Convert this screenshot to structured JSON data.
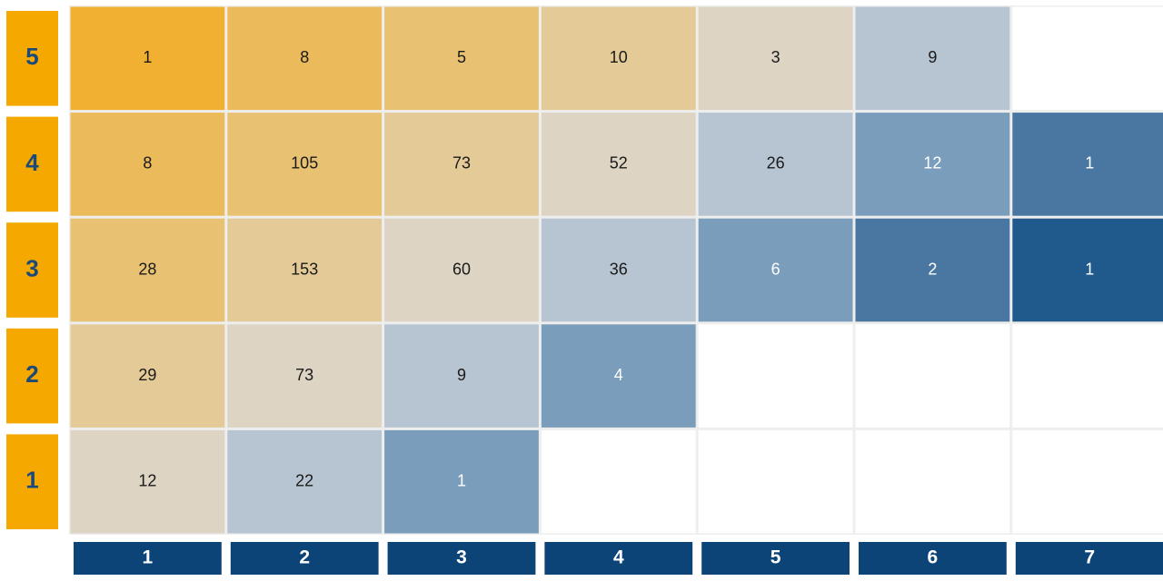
{
  "chart_data": {
    "type": "heatmap",
    "x_categories": [
      "1",
      "2",
      "3",
      "4",
      "5",
      "6",
      "7"
    ],
    "y_categories": [
      "1",
      "2",
      "3",
      "4",
      "5"
    ],
    "rows": [
      {
        "y": "5",
        "values": [
          1,
          8,
          5,
          10,
          3,
          9,
          null
        ]
      },
      {
        "y": "4",
        "values": [
          8,
          105,
          73,
          52,
          26,
          12,
          1
        ]
      },
      {
        "y": "3",
        "values": [
          28,
          153,
          60,
          36,
          6,
          2,
          1
        ]
      },
      {
        "y": "2",
        "values": [
          29,
          73,
          9,
          4,
          null,
          null,
          null
        ]
      },
      {
        "y": "1",
        "values": [
          12,
          22,
          1,
          null,
          null,
          null,
          null
        ]
      }
    ],
    "xlabel": "",
    "ylabel": "",
    "colors": {
      "axis_box_y": "#f5a800",
      "axis_box_x": "#0d4478",
      "cell_palette_by_diagonal": {
        "-5": "#f7a800",
        "-4": "#f2b032",
        "-3": "#ebbb5b",
        "-2": "#e8c272",
        "-1": "#e3ca97",
        "0": "#ddd4c3",
        "1": "#b7c4d1",
        "2": "#7a9dbb",
        "3": "#4977a2",
        "4": "#205a8c",
        "5": "#013d77",
        "6": "#013d77"
      },
      "text_dark": "#1a1a1a",
      "text_light": "#ffffff",
      "gridline": "#eeeeee"
    }
  }
}
